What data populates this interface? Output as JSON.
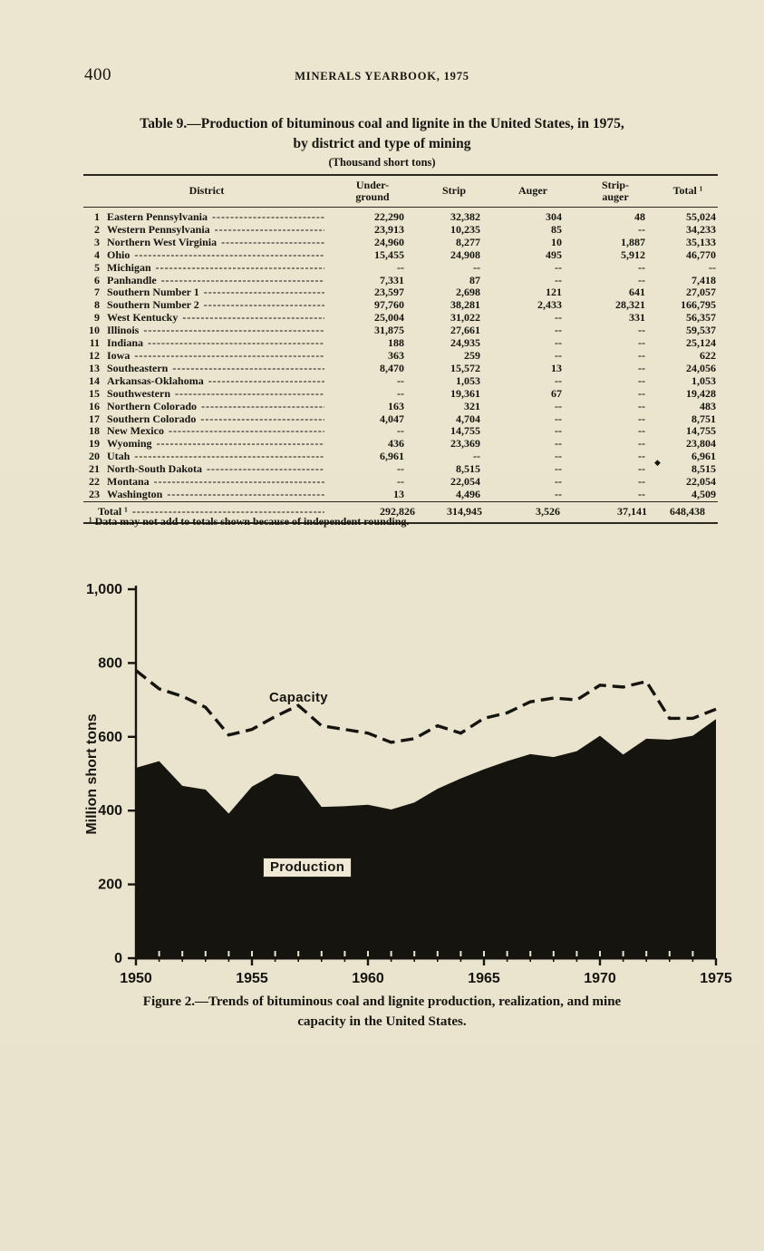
{
  "page": {
    "number": "400",
    "running_head": "MINERALS YEARBOOK, 1975"
  },
  "table": {
    "title_line1": "Table 9.—Production of bituminous coal and lignite in the United States, in 1975,",
    "title_line2": "by district and type of mining",
    "units": "(Thousand short tons)",
    "headers": {
      "district": "District",
      "underground_1": "Under-",
      "underground_2": "ground",
      "strip": "Strip",
      "auger": "Auger",
      "strip_auger_1": "Strip-",
      "strip_auger_2": "auger",
      "total": "Total ¹"
    },
    "rows": [
      {
        "num": "1",
        "district": "Eastern Pennsylvania",
        "underground": "22,290",
        "strip": "32,382",
        "auger": "304",
        "strip_auger": "48",
        "total": "55,024"
      },
      {
        "num": "2",
        "district": "Western Pennsylvania",
        "underground": "23,913",
        "strip": "10,235",
        "auger": "85",
        "strip_auger": "--",
        "total": "34,233"
      },
      {
        "num": "3",
        "district": "Northern West Virginia",
        "underground": "24,960",
        "strip": "8,277",
        "auger": "10",
        "strip_auger": "1,887",
        "total": "35,133"
      },
      {
        "num": "4",
        "district": "Ohio",
        "underground": "15,455",
        "strip": "24,908",
        "auger": "495",
        "strip_auger": "5,912",
        "total": "46,770"
      },
      {
        "num": "5",
        "district": "Michigan",
        "underground": "--",
        "strip": "--",
        "auger": "--",
        "strip_auger": "--",
        "total": "--"
      },
      {
        "num": "6",
        "district": "Panhandle",
        "underground": "7,331",
        "strip": "87",
        "auger": "--",
        "strip_auger": "--",
        "total": "7,418"
      },
      {
        "num": "7",
        "district": "Southern Number 1",
        "underground": "23,597",
        "strip": "2,698",
        "auger": "121",
        "strip_auger": "641",
        "total": "27,057"
      },
      {
        "num": "8",
        "district": "Southern Number 2",
        "underground": "97,760",
        "strip": "38,281",
        "auger": "2,433",
        "strip_auger": "28,321",
        "total": "166,795"
      },
      {
        "num": "9",
        "district": "West Kentucky",
        "underground": "25,004",
        "strip": "31,022",
        "auger": "--",
        "strip_auger": "331",
        "total": "56,357"
      },
      {
        "num": "10",
        "district": "Illinois",
        "underground": "31,875",
        "strip": "27,661",
        "auger": "--",
        "strip_auger": "--",
        "total": "59,537"
      },
      {
        "num": "11",
        "district": "Indiana",
        "underground": "188",
        "strip": "24,935",
        "auger": "--",
        "strip_auger": "--",
        "total": "25,124"
      },
      {
        "num": "12",
        "district": "Iowa",
        "underground": "363",
        "strip": "259",
        "auger": "--",
        "strip_auger": "--",
        "total": "622"
      },
      {
        "num": "13",
        "district": "Southeastern",
        "underground": "8,470",
        "strip": "15,572",
        "auger": "13",
        "strip_auger": "--",
        "total": "24,056"
      },
      {
        "num": "14",
        "district": "Arkansas-Oklahoma",
        "underground": "--",
        "strip": "1,053",
        "auger": "--",
        "strip_auger": "--",
        "total": "1,053"
      },
      {
        "num": "15",
        "district": "Southwestern",
        "underground": "--",
        "strip": "19,361",
        "auger": "67",
        "strip_auger": "--",
        "total": "19,428"
      },
      {
        "num": "16",
        "district": "Northern Colorado",
        "underground": "163",
        "strip": "321",
        "auger": "--",
        "strip_auger": "--",
        "total": "483"
      },
      {
        "num": "17",
        "district": "Southern Colorado",
        "underground": "4,047",
        "strip": "4,704",
        "auger": "--",
        "strip_auger": "--",
        "total": "8,751"
      },
      {
        "num": "18",
        "district": "New Mexico",
        "underground": "--",
        "strip": "14,755",
        "auger": "--",
        "strip_auger": "--",
        "total": "14,755"
      },
      {
        "num": "19",
        "district": "Wyoming",
        "underground": "436",
        "strip": "23,369",
        "auger": "--",
        "strip_auger": "--",
        "total": "23,804"
      },
      {
        "num": "20",
        "district": "Utah",
        "underground": "6,961",
        "strip": "--",
        "auger": "--",
        "strip_auger": "--",
        "total": "6,961"
      },
      {
        "num": "21",
        "district": "North-South Dakota",
        "underground": "--",
        "strip": "8,515",
        "auger": "--",
        "strip_auger": "--",
        "total": "8,515"
      },
      {
        "num": "22",
        "district": "Montana",
        "underground": "--",
        "strip": "22,054",
        "auger": "--",
        "strip_auger": "--",
        "total": "22,054"
      },
      {
        "num": "23",
        "district": "Washington",
        "underground": "13",
        "strip": "4,496",
        "auger": "--",
        "strip_auger": "--",
        "total": "4,509"
      }
    ],
    "total_row": {
      "label": "Total ¹",
      "underground": "292,826",
      "strip": "314,945",
      "auger": "3,526",
      "strip_auger": "37,141",
      "total": "648,438"
    },
    "footnote": "¹ Data may not add to totals shown because of independent rounding.",
    "artifact": "◆"
  },
  "figure": {
    "ylabel": "Million short tons",
    "capacity_label": "Capacity",
    "production_label": "Production",
    "caption_line1": "Figure 2.—Trends of bituminous coal and lignite production, realization, and mine",
    "caption_line2": "capacity in the United States."
  },
  "chart_data": {
    "type": "area",
    "x": [
      1950,
      1951,
      1952,
      1953,
      1954,
      1955,
      1956,
      1957,
      1958,
      1959,
      1960,
      1961,
      1962,
      1963,
      1964,
      1965,
      1966,
      1967,
      1968,
      1969,
      1970,
      1971,
      1972,
      1973,
      1974,
      1975
    ],
    "series": [
      {
        "name": "Capacity",
        "style": "dashed_line",
        "values": [
          780,
          730,
          710,
          680,
          605,
          620,
          655,
          685,
          630,
          620,
          610,
          585,
          595,
          630,
          610,
          650,
          665,
          695,
          705,
          700,
          740,
          735,
          750,
          650,
          650,
          675
        ]
      },
      {
        "name": "Production",
        "style": "filled_area",
        "values": [
          516,
          534,
          467,
          457,
          392,
          465,
          500,
          493,
          410,
          412,
          416,
          403,
          422,
          459,
          487,
          512,
          534,
          553,
          545,
          561,
          603,
          552,
          595,
          592,
          603,
          648
        ]
      }
    ],
    "title": "",
    "xlabel": "",
    "ylabel": "Million short tons",
    "ylim": [
      0,
      1000
    ],
    "yticks": [
      0,
      200,
      400,
      600,
      800,
      1000
    ],
    "xticks": [
      1950,
      1955,
      1960,
      1965,
      1970,
      1975
    ],
    "grid": false,
    "legend": "inline-labels"
  }
}
